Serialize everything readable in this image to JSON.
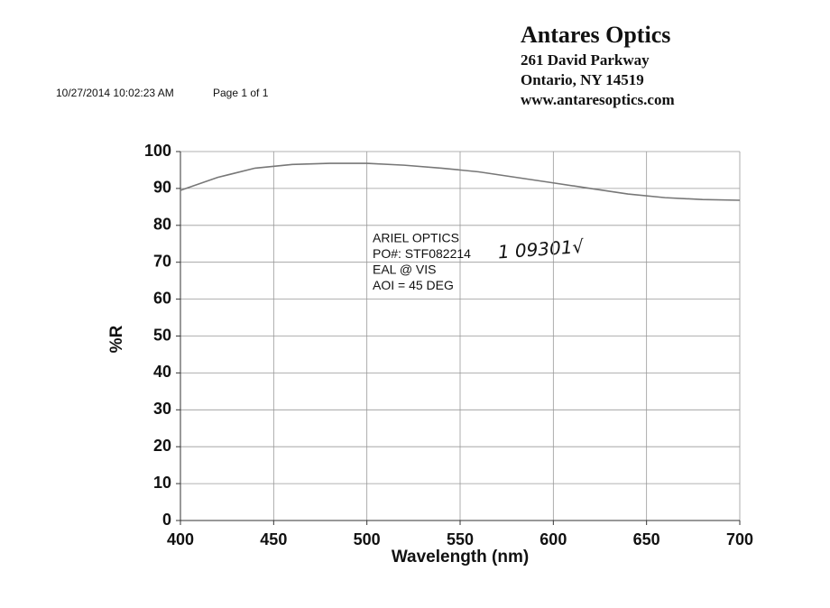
{
  "header": {
    "company": "Antares Optics",
    "address1": "261 David Parkway",
    "address2": "Ontario, NY  14519",
    "website": "www.antaresoptics.com",
    "timestamp": "10/27/2014 10:02:23 AM",
    "page": "Page 1 of 1"
  },
  "chart_data": {
    "type": "line",
    "x_label": "Wavelength (nm)",
    "y_label": "%R",
    "x": [
      400,
      420,
      440,
      460,
      480,
      500,
      520,
      540,
      560,
      580,
      600,
      620,
      640,
      660,
      680,
      700
    ],
    "values": [
      89.5,
      93,
      95.5,
      96.5,
      96.8,
      96.8,
      96.3,
      95.5,
      94.5,
      93,
      91.5,
      90,
      88.5,
      87.5,
      87,
      86.8
    ],
    "color": "#777777",
    "xlim": [
      400,
      700
    ],
    "xticks": [
      400,
      450,
      500,
      550,
      600,
      650,
      700
    ],
    "ylim": [
      0,
      100
    ],
    "yticks": [
      0,
      10,
      20,
      30,
      40,
      50,
      60,
      70,
      80,
      90,
      100
    ],
    "grid": true,
    "annotation": [
      "ARIEL OPTICS",
      "PO#:  STF082214",
      "EAL @ VIS",
      "AOI = 45 DEG"
    ],
    "handwritten": "1 09301√"
  }
}
